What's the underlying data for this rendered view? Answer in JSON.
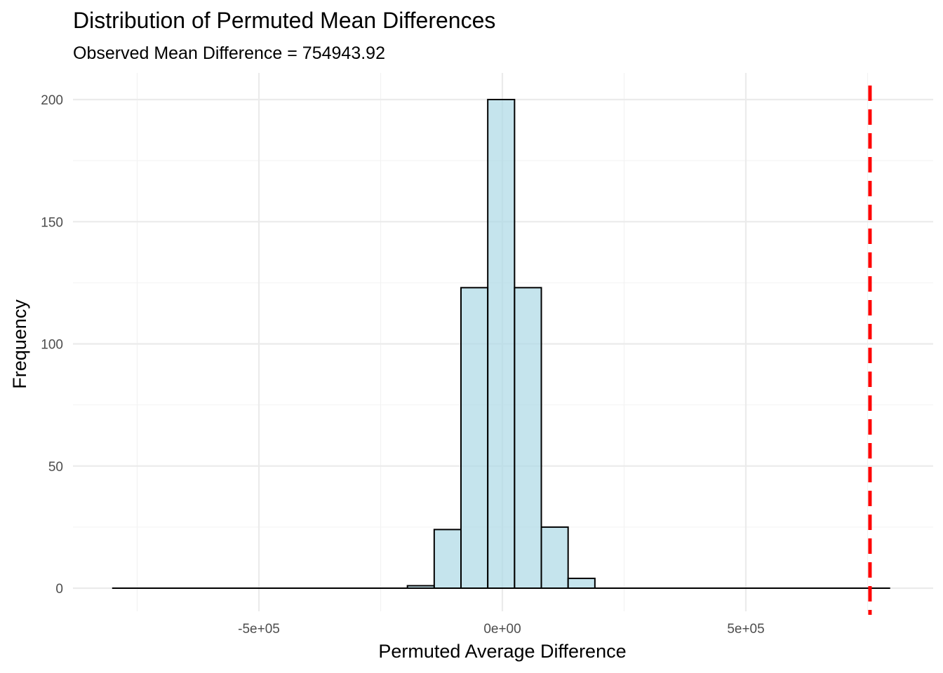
{
  "chart_data": {
    "type": "bar",
    "title": "Distribution of Permuted Mean Differences",
    "subtitle": "Observed Mean Difference = 754943.92",
    "xlabel": "Permuted Average Difference",
    "ylabel": "Frequency",
    "xlim": [
      -800000,
      800000
    ],
    "ylim": [
      0,
      200
    ],
    "x_ticks": [
      {
        "value": -500000,
        "label": "-5e+05"
      },
      {
        "value": 0,
        "label": "0e+00"
      },
      {
        "value": 500000,
        "label": "5e+05"
      }
    ],
    "y_ticks": [
      {
        "value": 0,
        "label": "0"
      },
      {
        "value": 50,
        "label": "50"
      },
      {
        "value": 100,
        "label": "100"
      },
      {
        "value": 150,
        "label": "150"
      },
      {
        "value": 200,
        "label": "200"
      }
    ],
    "bin_width": 55000,
    "bin_start": -800000,
    "bin_counts": [
      0,
      0,
      0,
      0,
      0,
      0,
      0,
      0,
      0,
      0,
      0,
      1,
      24,
      123,
      200,
      123,
      25,
      4,
      0,
      0,
      0,
      0,
      0,
      0,
      0,
      0,
      0,
      0,
      0
    ],
    "observed_value": 754943.92,
    "bar_fill": "#add8e6",
    "bar_fill_opacity": 0.7,
    "bar_outline": "#000000",
    "observed_line_color": "#ff0000",
    "observed_line_style": "dashed",
    "grid": true
  }
}
